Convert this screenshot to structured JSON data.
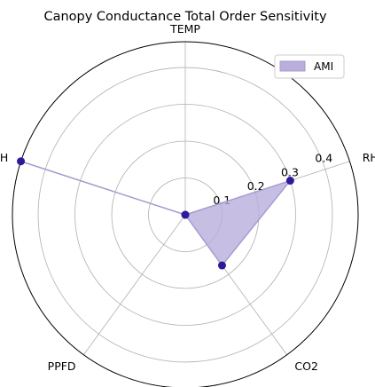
{
  "chart_data": {
    "type": "radar",
    "title": "Canopy Conductance Total Order Sensitivity",
    "axes": [
      "TEMP",
      "RH",
      "CO2",
      "PPFD",
      "H"
    ],
    "radial_ticks": [
      0.1,
      0.2,
      0.3,
      0.4
    ],
    "radial_tick_labels": [
      "0.1",
      "0.2",
      "0.3",
      "0.4"
    ],
    "rlim": [
      0,
      0.47
    ],
    "grid": true,
    "legend": {
      "position": "top-right",
      "entries": [
        "AMI"
      ]
    },
    "series": [
      {
        "name": "AMI",
        "values": [
          0.0,
          0.3,
          0.17,
          0.0,
          0.47
        ]
      }
    ],
    "colors": {
      "fill": "#B9AEDC",
      "line": "#A79BCF",
      "marker": "#2B1B9B",
      "grid": "#B0B0B0",
      "outline": "#000000"
    }
  }
}
